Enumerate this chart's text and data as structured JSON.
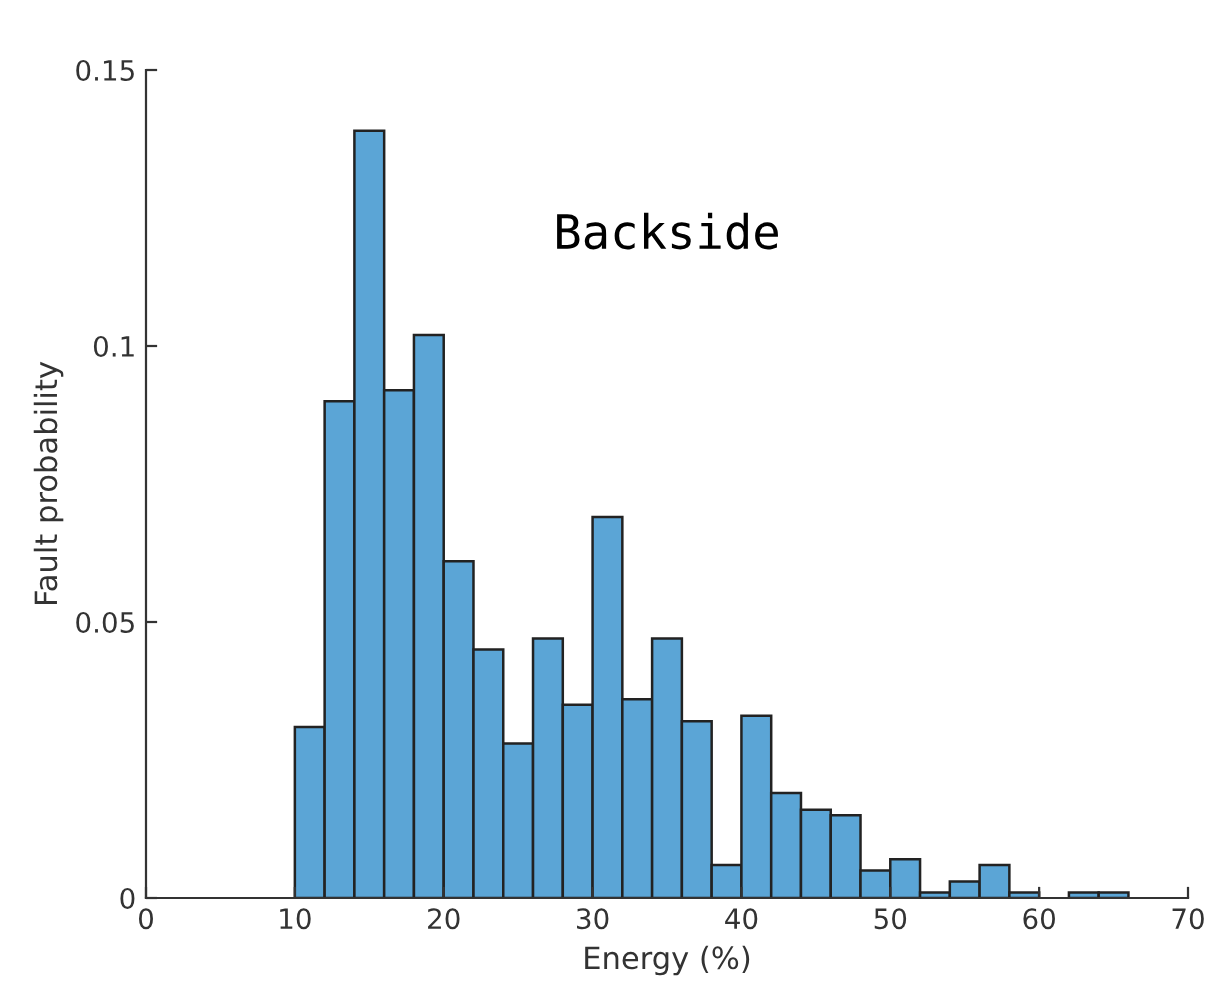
{
  "chart_data": {
    "type": "histogram",
    "xlabel": "Energy (%)",
    "ylabel": "Fault probability",
    "annotations": [
      "Backside"
    ],
    "bins": [
      10,
      12,
      14,
      16,
      18,
      20,
      22,
      24,
      26,
      28,
      30,
      32,
      34,
      36,
      38,
      40,
      42,
      44,
      46,
      48,
      50,
      52,
      54,
      56,
      58,
      60,
      62,
      64,
      66
    ],
    "values": [
      0.031,
      0.09,
      0.139,
      0.092,
      0.102,
      0.061,
      0.045,
      0.028,
      0.047,
      0.035,
      0.069,
      0.036,
      0.047,
      0.032,
      0.006,
      0.033,
      0.019,
      0.016,
      0.015,
      0.005,
      0.007,
      0.001,
      0.003,
      0.006,
      0.001,
      0,
      0.001,
      0.001
    ],
    "color": "#5ba5d6",
    "xlim": [
      0,
      70
    ],
    "xticks": [
      0,
      10,
      20,
      30,
      40,
      50,
      60,
      70
    ],
    "ylim": [
      0,
      0.15
    ],
    "yticks": [
      0,
      0.05,
      0.1,
      0.15
    ],
    "grid": false
  }
}
